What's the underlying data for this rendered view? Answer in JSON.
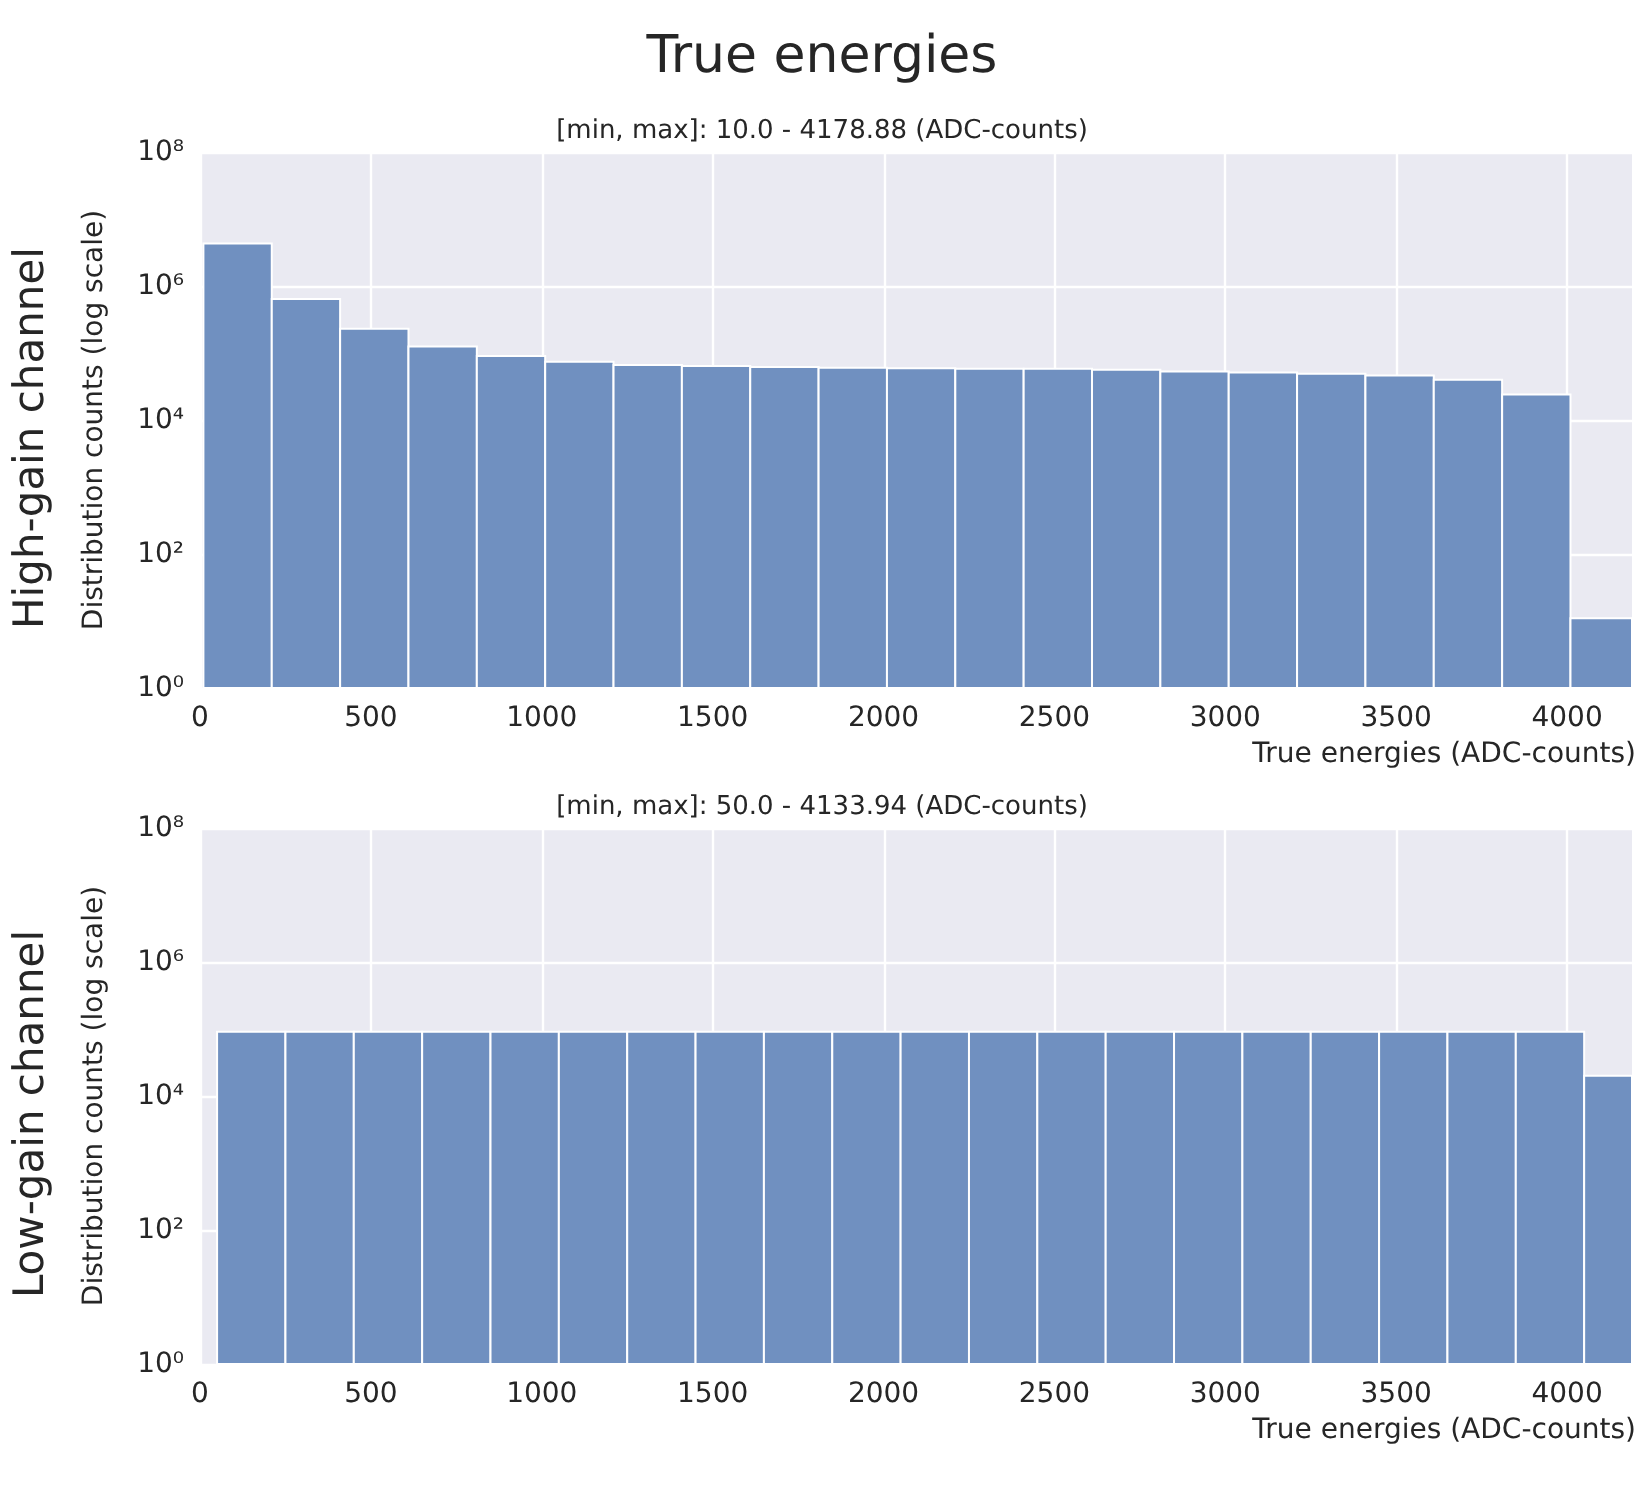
{
  "chart_data": [
    {
      "type": "histogram",
      "title": "True energies",
      "subtitle": "[min, max]: 10.0 - 4178.88 (ADC-counts)",
      "xlabel": "True energies (ADC-counts)",
      "ylabel": "Distribution counts (log scale)",
      "annotations": [
        "High-gain channel"
      ],
      "bins": [
        10,
        210,
        410,
        610,
        810,
        1010,
        1210,
        1410,
        1610,
        1810,
        2010,
        2210,
        2410,
        2610,
        2810,
        3010,
        3210,
        3410,
        3610,
        3810,
        4010,
        4190
      ],
      "values": [
        4300000,
        640000,
        230000,
        125000,
        90000,
        74000,
        66000,
        64000,
        62000,
        60000,
        59000,
        58000,
        58000,
        56000,
        53000,
        51000,
        49000,
        46000,
        40000,
        24000,
        11
      ],
      "color": "#7090c0",
      "log": true,
      "grid": true,
      "xlim": [
        0,
        4190
      ],
      "xticks": [
        0,
        500,
        1000,
        1500,
        2000,
        2500,
        3000,
        3500,
        4000
      ],
      "ylim": [
        1,
        100000000
      ],
      "yticks": [
        {
          "value": 1,
          "label": "10⁰"
        },
        {
          "value": 100,
          "label": "10²"
        },
        {
          "value": 10000,
          "label": "10⁴"
        },
        {
          "value": 1000000,
          "label": "10⁶"
        },
        {
          "value": 100000000,
          "label": "10⁸"
        }
      ]
    },
    {
      "type": "histogram",
      "subtitle": "[min, max]: 50.0 - 4133.94 (ADC-counts)",
      "xlabel": "True energies (ADC-counts)",
      "ylabel": "Distribution counts (log scale)",
      "annotations": [
        "Low-gain channel"
      ],
      "bins": [
        50,
        250,
        450,
        650,
        850,
        1050,
        1250,
        1450,
        1650,
        1850,
        2050,
        2250,
        2450,
        2650,
        2850,
        3050,
        3250,
        3450,
        3650,
        3850,
        4050,
        4190
      ],
      "values": [
        91000,
        91000,
        91000,
        91000,
        91000,
        91000,
        91000,
        91000,
        91000,
        91000,
        91000,
        91000,
        91000,
        91000,
        91000,
        91000,
        91000,
        91000,
        91000,
        91000,
        20000
      ],
      "color": "#7090c0",
      "log": true,
      "grid": true,
      "xlim": [
        0,
        4190
      ],
      "xticks": [
        0,
        500,
        1000,
        1500,
        2000,
        2500,
        3000,
        3500,
        4000
      ],
      "ylim": [
        1,
        100000000
      ],
      "yticks": [
        {
          "value": 1,
          "label": "10⁰"
        },
        {
          "value": 100,
          "label": "10²"
        },
        {
          "value": 10000,
          "label": "10⁴"
        },
        {
          "value": 1000000,
          "label": "10⁶"
        },
        {
          "value": 100000000,
          "label": "10⁸"
        }
      ]
    }
  ]
}
